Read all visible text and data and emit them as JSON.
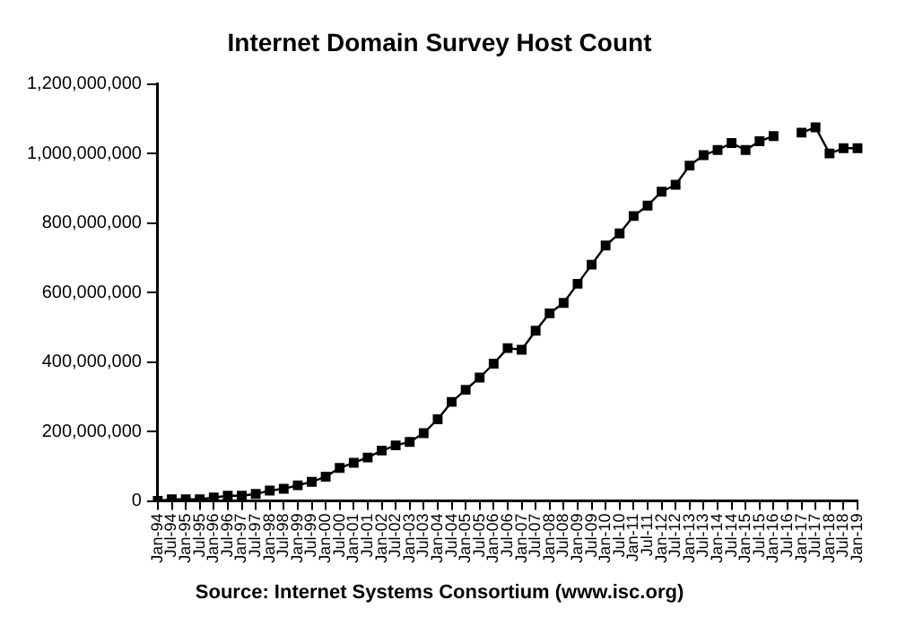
{
  "chart_data": {
    "type": "line",
    "title": "Internet Domain Survey Host Count",
    "annotations": [
      "Source: Internet Systems Consortium (www.isc.org)"
    ],
    "categories": [
      "Jan-94",
      "Jul-94",
      "Jan-95",
      "Jul-95",
      "Jan-96",
      "Jul-96",
      "Jan-97",
      "Jul-97",
      "Jan-98",
      "Jul-98",
      "Jan-99",
      "Jul-99",
      "Jan-00",
      "Jul-00",
      "Jan-01",
      "Jul-01",
      "Jan-02",
      "Jul-02",
      "Jan-03",
      "Jul-03",
      "Jan-04",
      "Jul-04",
      "Jan-05",
      "Jul-05",
      "Jan-06",
      "Jul-06",
      "Jan-07",
      "Jul-07",
      "Jan-08",
      "Jul-08",
      "Jan-09",
      "Jul-09",
      "Jan-10",
      "Jul-10",
      "Jan-11",
      "Jul-11",
      "Jan-12",
      "Jul-12",
      "Jan-13",
      "Jul-13",
      "Jan-14",
      "Jul-14",
      "Jan-15",
      "Jul-15",
      "Jan-16",
      "Jul-16",
      "Jan-17",
      "Jul-17",
      "Jan-18",
      "Jul-18",
      "Jan-19"
    ],
    "series": [
      {
        "color": "#000000",
        "values": [
          0,
          5000000,
          5000000,
          5000000,
          10000000,
          15000000,
          15000000,
          20000000,
          30000000,
          35000000,
          45000000,
          55000000,
          70000000,
          95000000,
          110000000,
          125000000,
          145000000,
          160000000,
          170000000,
          195000000,
          235000000,
          285000000,
          320000000,
          355000000,
          395000000,
          440000000,
          435000000,
          490000000,
          540000000,
          570000000,
          625000000,
          680000000,
          735000000,
          770000000,
          820000000,
          850000000,
          890000000,
          910000000,
          965000000,
          995000000,
          1010000000,
          1030000000,
          1010000000,
          1035000000,
          1050000000,
          null,
          1060000000,
          1075000000,
          1000000000,
          1015000000,
          1015000000
        ]
      }
    ],
    "ylim": [
      0,
      1200000000
    ],
    "yticks": [
      {
        "value": 0,
        "label": "0"
      },
      {
        "value": 200000000,
        "label": "200,000,000"
      },
      {
        "value": 400000000,
        "label": "400,000,000"
      },
      {
        "value": 600000000,
        "label": "600,000,000"
      },
      {
        "value": 800000000,
        "label": "800,000,000"
      },
      {
        "value": 1000000000,
        "label": "1,000,000,000"
      },
      {
        "value": 1200000000,
        "label": "1,200,000,000"
      }
    ],
    "grid": false,
    "legend": false,
    "marker": "square",
    "line_style": "solid"
  }
}
